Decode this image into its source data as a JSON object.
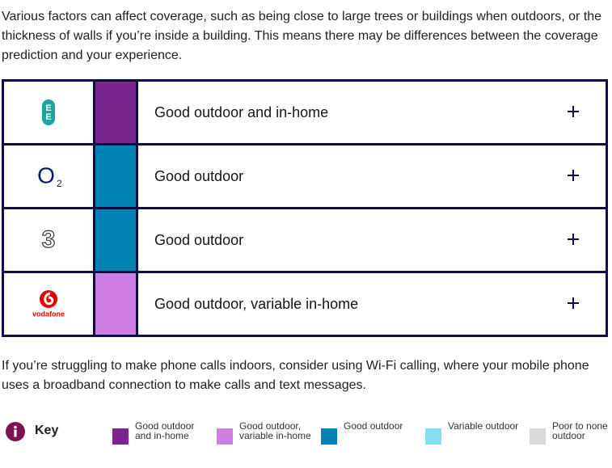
{
  "intro": "Various factors can affect coverage, such as being close to large trees or buildings when outdoors, or the thickness of walls if you’re inside a building. This means there may be differences between the coverage prediction and your experience.",
  "table": {
    "rows": [
      {
        "logo_text": [
          "E",
          "E"
        ],
        "color": "#7b2590",
        "label": "Good outdoor and in-home"
      },
      {
        "logo_text": [
          "O",
          "2"
        ],
        "color": "#0082b5",
        "label": "Good outdoor"
      },
      {
        "logo_text": [
          "3"
        ],
        "color": "#0082b5",
        "label": "Good outdoor"
      },
      {
        "logo_text": [
          "vodafone"
        ],
        "color": "#cf7fe2",
        "label": "Good outdoor, variable in-home"
      }
    ]
  },
  "outro": "If you’re struggling to make phone calls indoors, consider using Wi-Fi calling, where your mobile phone uses a broadband connection to make calls and text messages.",
  "key": {
    "title": "Key",
    "items": [
      {
        "color": "#7b2590",
        "label": "Good outdoor and in-home"
      },
      {
        "color": "#cf7fe2",
        "label": "Good outdoor, variable in-home"
      },
      {
        "color": "#0082b5",
        "label": "Good outdoor"
      },
      {
        "color": "#86e0f3",
        "label": "Variable outdoor"
      },
      {
        "color": "#d9d9d9",
        "label": "Poor to none outdoor"
      }
    ]
  }
}
